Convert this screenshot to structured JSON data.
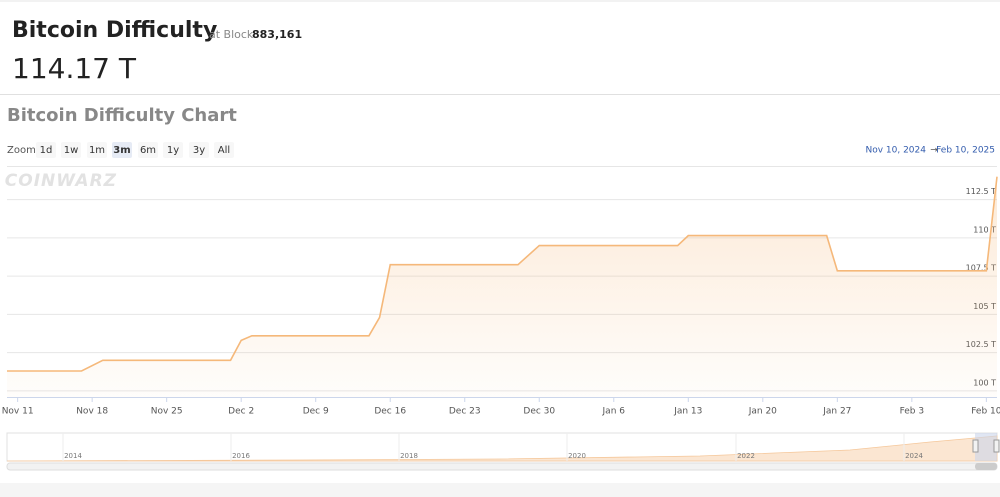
{
  "header": {
    "title": "Bitcoin Difficulty",
    "at_block_label": "at Block",
    "block": "883,161",
    "value": "114.17 T"
  },
  "chart_data": {
    "type": "line",
    "title": "Bitcoin Difficulty Chart",
    "zoom_label": "Zoom",
    "zoom_buttons": [
      "1d",
      "1w",
      "1m",
      "3m",
      "6m",
      "1y",
      "3y",
      "All"
    ],
    "selected_zoom": "3m",
    "range_from": "Nov 10, 2024",
    "range_arrow": "→",
    "range_to": "Feb 10, 2025",
    "watermark": "COINWARZ",
    "x": [
      "2024-11-10",
      "2024-11-17",
      "2024-11-19",
      "2024-12-01",
      "2024-12-02",
      "2024-12-03",
      "2024-12-14",
      "2024-12-15",
      "2024-12-16",
      "2024-12-28",
      "2024-12-30",
      "2025-01-12",
      "2025-01-13",
      "2025-01-26",
      "2025-01-27",
      "2025-02-10",
      "2025-02-11"
    ],
    "series": [
      {
        "name": "Difficulty",
        "color": "#f5b87a",
        "values": [
          101.3,
          101.3,
          102.0,
          102.0,
          103.3,
          103.6,
          103.6,
          104.8,
          108.25,
          108.25,
          109.5,
          109.5,
          110.15,
          110.15,
          107.85,
          107.85,
          114.0
        ]
      }
    ],
    "xlim": [
      "2024-11-10",
      "2025-02-11"
    ],
    "xticks": [
      {
        "value": "2024-11-11",
        "label": "Nov 11"
      },
      {
        "value": "2024-11-18",
        "label": "Nov 18"
      },
      {
        "value": "2024-11-25",
        "label": "Nov 25"
      },
      {
        "value": "2024-12-02",
        "label": "Dec 2"
      },
      {
        "value": "2024-12-09",
        "label": "Dec 9"
      },
      {
        "value": "2024-12-16",
        "label": "Dec 16"
      },
      {
        "value": "2024-12-23",
        "label": "Dec 23"
      },
      {
        "value": "2024-12-30",
        "label": "Dec 30"
      },
      {
        "value": "2025-01-06",
        "label": "Jan 6"
      },
      {
        "value": "2025-01-13",
        "label": "Jan 13"
      },
      {
        "value": "2025-01-20",
        "label": "Jan 20"
      },
      {
        "value": "2025-01-27",
        "label": "Jan 27"
      },
      {
        "value": "2025-02-03",
        "label": "Feb 3"
      },
      {
        "value": "2025-02-10",
        "label": "Feb 10"
      }
    ],
    "ylim": [
      99.6,
      114.7
    ],
    "yticks": [
      {
        "value": 100,
        "label": "100 T"
      },
      {
        "value": 102.5,
        "label": "102.5 T"
      },
      {
        "value": 105,
        "label": "105 T"
      },
      {
        "value": 107.5,
        "label": "107.5 T"
      },
      {
        "value": 110,
        "label": "110 T"
      },
      {
        "value": 112.5,
        "label": "112.5 T"
      }
    ],
    "grid": true,
    "navigator_labels": [
      "2014",
      "2016",
      "2018",
      "2020",
      "2022",
      "2024"
    ]
  }
}
